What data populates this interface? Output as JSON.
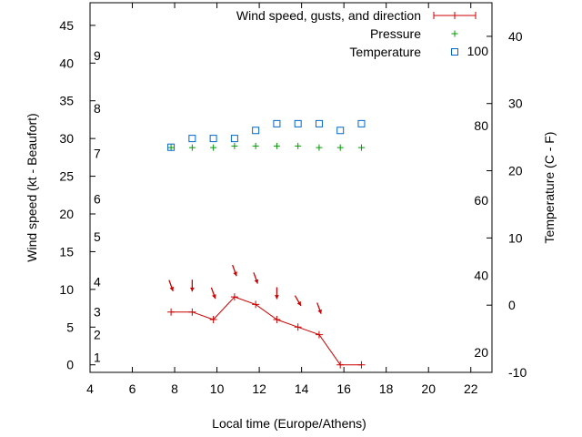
{
  "chart_data": {
    "type": "line",
    "x": [
      7.83,
      8.83,
      9.83,
      10.83,
      11.83,
      12.83,
      13.83,
      14.83,
      15.83,
      16.83
    ],
    "xlabel": "Local time (Europe/Athens)",
    "ylabel": "Wind speed (kt - Beaufort)",
    "y2label": "Temperature (C - F)",
    "xlim": [
      4,
      23
    ],
    "ylim": [
      -1,
      48
    ],
    "y2lim": [
      -10,
      45
    ],
    "x_ticks": [
      4,
      6,
      8,
      10,
      12,
      14,
      16,
      18,
      20,
      22
    ],
    "y_ticks": [
      0,
      5,
      10,
      15,
      20,
      25,
      30,
      35,
      40,
      45
    ],
    "y2_ticks": [
      -10,
      0,
      10,
      20,
      30,
      40
    ],
    "beaufort_labels": [
      {
        "label": "1",
        "value": 1
      },
      {
        "label": "2",
        "value": 4
      },
      {
        "label": "3",
        "value": 7
      },
      {
        "label": "4",
        "value": 11
      },
      {
        "label": "5",
        "value": 17
      },
      {
        "label": "6",
        "value": 22
      },
      {
        "label": "7",
        "value": 28
      },
      {
        "label": "8",
        "value": 34
      },
      {
        "label": "9",
        "value": 41
      }
    ],
    "fahrenheit_labels": [
      {
        "label": "20",
        "value": -7
      },
      {
        "label": "40",
        "value": 4.4
      },
      {
        "label": "60",
        "value": 15.6
      },
      {
        "label": "80",
        "value": 26.7
      },
      {
        "label": "100",
        "value": 37.8
      }
    ],
    "series": [
      {
        "name": "Wind speed, gusts, and direction",
        "color": "#cc0000",
        "values": [
          7,
          7,
          6,
          9,
          8,
          6,
          5,
          4,
          0,
          0
        ]
      },
      {
        "name": "Pressure",
        "color": "#009900",
        "values": [
          28.8,
          28.8,
          28.8,
          29.0,
          29.0,
          29.0,
          29.0,
          28.8,
          28.8,
          28.8
        ]
      },
      {
        "name": "Temperature",
        "color": "#0066cc",
        "values": [
          23.5,
          24.8,
          24.8,
          24.8,
          26.0,
          27.0,
          27.0,
          27.0,
          26.0,
          27.0
        ]
      }
    ],
    "wind_direction_arrows": [
      {
        "x": 7.83,
        "y": 10.5,
        "angle_deg": 200
      },
      {
        "x": 8.83,
        "y": 10.5,
        "angle_deg": 180
      },
      {
        "x": 9.83,
        "y": 9.5,
        "angle_deg": 200
      },
      {
        "x": 10.83,
        "y": 12.5,
        "angle_deg": 200
      },
      {
        "x": 11.83,
        "y": 11.5,
        "angle_deg": 200
      },
      {
        "x": 12.83,
        "y": 9.5,
        "angle_deg": 180
      },
      {
        "x": 13.83,
        "y": 8.5,
        "angle_deg": 210
      },
      {
        "x": 14.83,
        "y": 7.5,
        "angle_deg": 200
      }
    ]
  }
}
